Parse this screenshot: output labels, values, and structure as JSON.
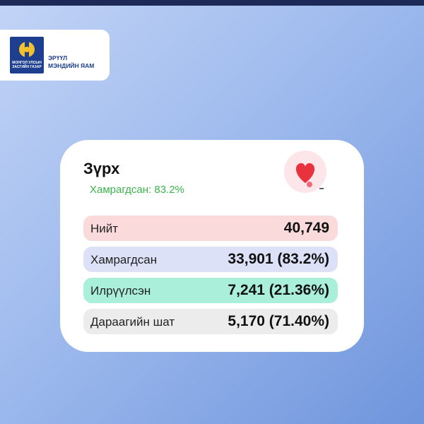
{
  "header": {
    "logo_text": [
      "МОНГОЛ УЛСЫН",
      "ЗАСГИЙН ГАЗАР"
    ],
    "ministry": [
      "ЭРҮҮЛ",
      "МЭНДИЙН ЯАМ"
    ]
  },
  "card": {
    "title": "Зүрх",
    "subtitle": "Хамрагдсан: 83.2%",
    "rows": [
      {
        "label": "Нийт",
        "value": "40,749"
      },
      {
        "label": "Хамрагдсан",
        "value": "33,901 (83.2%)"
      },
      {
        "label": "Илрүүлсэн",
        "value": "7,241 (21.36%)"
      },
      {
        "label": "Дараагийн шат",
        "value": "5,170 (71.40%)"
      }
    ]
  }
}
